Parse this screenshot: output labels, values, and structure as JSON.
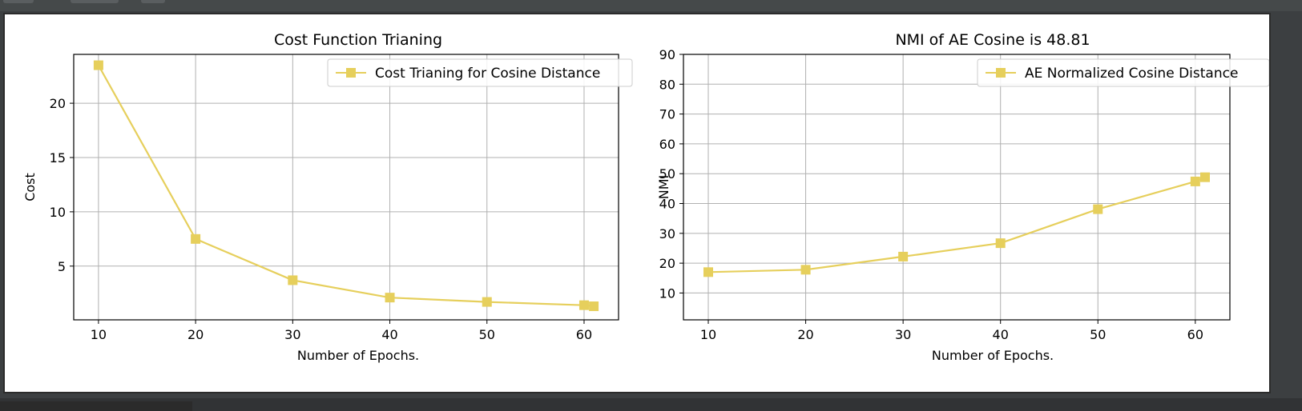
{
  "colors": {
    "series": "#e6cf5c",
    "grid": "#b0b0b0",
    "axis": "#000000",
    "window_bg": "#3c3f41"
  },
  "chart_data": [
    {
      "type": "line",
      "title": "Cost Function Trianing",
      "xlabel": "Number of Epochs.",
      "ylabel": "Cost",
      "xlim": [
        7.45,
        63.55
      ],
      "ylim": [
        0.05,
        24.5
      ],
      "xticks": [
        10,
        20,
        30,
        40,
        50,
        60
      ],
      "yticks": [
        5,
        10,
        15,
        20
      ],
      "grid": true,
      "legend": "top-right",
      "marker": "square",
      "series": [
        {
          "name": "Cost Trianing for Cosine Distance",
          "x": [
            10,
            20,
            30,
            40,
            50,
            60,
            61
          ],
          "y": [
            23.5,
            7.5,
            3.7,
            2.1,
            1.7,
            1.4,
            1.3
          ]
        }
      ]
    },
    {
      "type": "line",
      "title": "NMI of AE Cosine is 48.81",
      "xlabel": "Number of Epochs.",
      "ylabel": "NMI",
      "xlim": [
        7.45,
        63.55
      ],
      "ylim": [
        1,
        90
      ],
      "xticks": [
        10,
        20,
        30,
        40,
        50,
        60
      ],
      "yticks": [
        10,
        20,
        30,
        40,
        50,
        60,
        70,
        80,
        90
      ],
      "grid": true,
      "legend": "top-right",
      "marker": "square",
      "series": [
        {
          "name": "AE Normalized Cosine Distance",
          "x": [
            10,
            20,
            30,
            40,
            50,
            60,
            61
          ],
          "y": [
            17,
            17.8,
            22.2,
            26.7,
            38.1,
            47.4,
            48.81
          ]
        }
      ]
    }
  ]
}
